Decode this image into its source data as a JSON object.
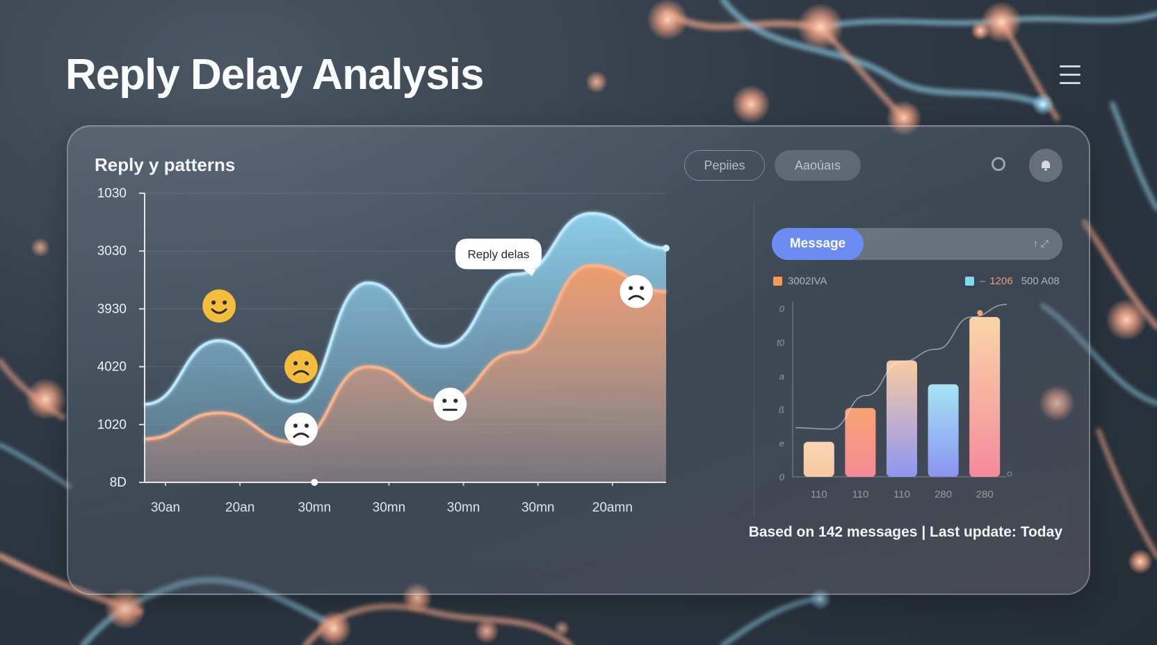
{
  "page": {
    "title": "Reply Delay Analysis"
  },
  "card": {
    "title": "Reply y patterns",
    "buttons": [
      "Pepiies",
      "Aaoúaıs"
    ],
    "tooltip": "Reply delas",
    "footer": "Based on 142 messages  |  Last update: Today"
  },
  "side": {
    "dropdown_label": "Message",
    "dropdown_caret": "↑ ⤢",
    "legend": [
      {
        "label": "3002IVA",
        "color": "#f29a5c"
      },
      {
        "label": "‒",
        "value1": "1206",
        "value2": "500 A08",
        "color": "#7fd8ee"
      }
    ]
  },
  "colors": {
    "blue_series": "#8fd3ef",
    "orange_series": "#f4a070",
    "accent_button": "#6b8df3",
    "emoji_yellow": "#f4be3c"
  },
  "chart_data": [
    {
      "type": "area",
      "title": "Reply y patterns",
      "y_ticks": [
        "8D",
        "1020",
        "4020",
        "3930",
        "3030",
        "1030"
      ],
      "x_ticks": [
        "30an",
        "20an",
        "30mn",
        "30mn",
        "30mn",
        "30mn",
        "20amn"
      ],
      "y_range": [
        0,
        5
      ],
      "grid": true,
      "series": [
        {
          "color": "#8fd3ef",
          "points": [
            [
              0,
              1.35
            ],
            [
              1,
              2.45
            ],
            [
              2,
              1.4
            ],
            [
              3,
              3.45
            ],
            [
              4,
              2.35
            ],
            [
              5,
              3.6
            ],
            [
              6,
              4.65
            ],
            [
              7,
              4.05
            ]
          ]
        },
        {
          "color": "#f4a070",
          "points": [
            [
              0,
              0.75
            ],
            [
              1,
              1.2
            ],
            [
              2,
              0.7
            ],
            [
              3,
              2.0
            ],
            [
              4,
              1.4
            ],
            [
              5,
              2.25
            ],
            [
              6,
              3.75
            ],
            [
              7,
              3.3
            ]
          ]
        }
      ],
      "markers": [
        {
          "x": 1.0,
          "y": 3.05,
          "mood": "happy"
        },
        {
          "x": 2.1,
          "y": 2.0,
          "mood": "sad"
        },
        {
          "x": 2.1,
          "y": 0.92,
          "mood": "sad"
        },
        {
          "x": 4.1,
          "y": 1.35,
          "mood": "neutral"
        },
        {
          "x": 6.6,
          "y": 3.3,
          "mood": "sad"
        }
      ],
      "tooltip_at": {
        "x": 4.75,
        "y": 3.95
      }
    },
    {
      "type": "bar",
      "y_ticks": [
        "0",
        "e",
        "ß",
        "a",
        "t0",
        "0"
      ],
      "x_ticks": [
        "110",
        "110",
        "110",
        "280",
        "280"
      ],
      "y_range": [
        0,
        6
      ],
      "bars": [
        {
          "value": 1.25,
          "top": "#f7d7b2",
          "bottom": "#f9c9a0"
        },
        {
          "value": 2.45,
          "top": "#f8a373",
          "bottom": "#f48a97"
        },
        {
          "value": 4.15,
          "top": "#f8cba1",
          "bottom": "#8e96f3"
        },
        {
          "value": 3.3,
          "top": "#a6e5f2",
          "bottom": "#8a93f2"
        },
        {
          "value": 5.7,
          "top": "#f9d6a7",
          "bottom": "#f58a9c"
        }
      ],
      "trend": [
        1.75,
        1.7,
        2.9,
        4.1,
        4.55,
        5.7,
        6.15
      ]
    }
  ]
}
